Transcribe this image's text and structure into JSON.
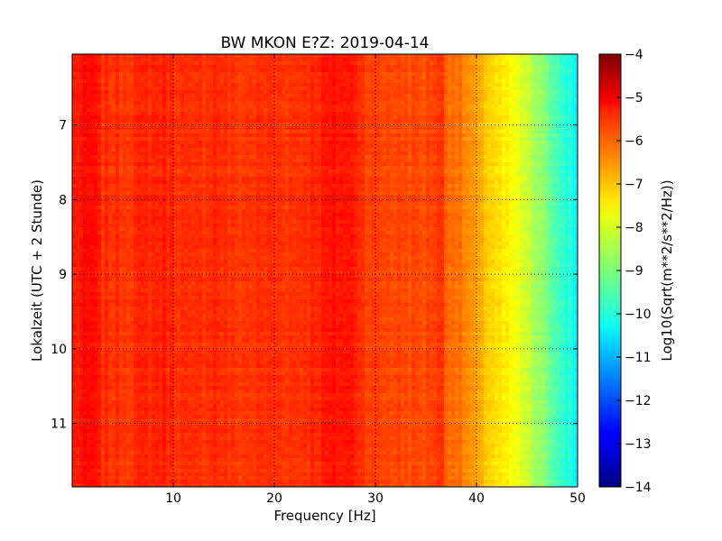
{
  "chart_data": {
    "type": "heatmap",
    "title": "BW MKON E?Z: 2019-04-14",
    "xlabel": "Frequency [Hz]",
    "ylabel": "Lokalzeit (UTC + 2 Stunde)",
    "xlim": [
      0,
      50
    ],
    "ylim": [
      11.85,
      6.05
    ],
    "x_ticks": [
      10,
      20,
      30,
      40,
      50
    ],
    "x_tick_labels": [
      "10",
      "20",
      "30",
      "40",
      "50"
    ],
    "y_ticks": [
      7,
      8,
      9,
      10,
      11
    ],
    "y_tick_labels": [
      "7",
      "8",
      "9",
      "10",
      "11"
    ],
    "grid": true,
    "colormap": "jet",
    "colorbar": {
      "label": "Log10(Sqrt(m**2/s**2/Hz))",
      "range": [
        -14,
        -4
      ],
      "ticks": [
        -4,
        -5,
        -6,
        -7,
        -8,
        -9,
        -10,
        -11,
        -12,
        -13,
        -14
      ],
      "tick_labels": [
        "−4",
        "−5",
        "−6",
        "−7",
        "−8",
        "−9",
        "−10",
        "−11",
        "−12",
        "−13",
        "−14"
      ]
    },
    "spectrum_profile": {
      "frequency_hz": [
        0,
        2,
        3,
        5,
        8,
        9,
        12,
        14,
        16,
        20,
        22,
        24,
        26,
        27,
        28,
        29,
        30,
        33,
        35,
        36.5,
        37,
        38,
        39,
        40,
        41,
        42,
        43,
        44,
        45,
        46,
        47,
        48,
        49,
        50
      ],
      "level": [
        -5.55,
        -5.35,
        -5.7,
        -5.75,
        -5.6,
        -5.55,
        -5.8,
        -5.6,
        -5.8,
        -5.7,
        -5.75,
        -5.6,
        -5.45,
        -5.45,
        -5.5,
        -5.8,
        -5.9,
        -5.95,
        -6.0,
        -5.7,
        -6.2,
        -6.3,
        -6.6,
        -6.9,
        -7.2,
        -7.45,
        -7.7,
        -7.95,
        -8.3,
        -8.7,
        -9.1,
        -9.5,
        -9.85,
        -10.3
      ]
    }
  }
}
